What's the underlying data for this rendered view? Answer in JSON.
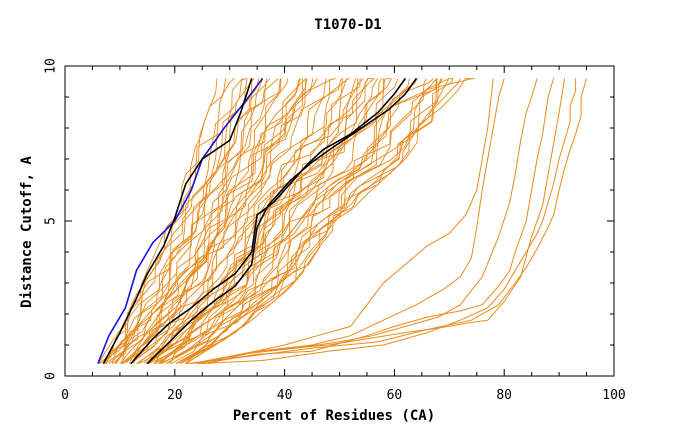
{
  "chart_data": {
    "type": "line",
    "title": "T1070-D1",
    "xlabel": "Percent of Residues (CA)",
    "ylabel": "Distance Cutoff, A",
    "xlim": [
      0,
      100
    ],
    "ylim": [
      0,
      10
    ],
    "x_ticks": [
      "0",
      "20",
      "40",
      "60",
      "80",
      "100"
    ],
    "y_ticks": [
      "0",
      "5",
      "10"
    ],
    "grid": false,
    "colors": {
      "models": "#e98a1c",
      "highlight_black": "#000000",
      "highlight_blue": "#1a10e0",
      "axis": "#000000"
    },
    "bundle": {
      "count": 60,
      "left_edge": [
        [
          6,
          0.4
        ],
        [
          10,
          1.5
        ],
        [
          14,
          3
        ],
        [
          19,
          5
        ],
        [
          23,
          7
        ],
        [
          27,
          9
        ],
        [
          29,
          9.6
        ]
      ],
      "right_edge": [
        [
          22,
          0.4
        ],
        [
          32,
          1.5
        ],
        [
          42,
          3
        ],
        [
          50,
          5
        ],
        [
          62,
          7
        ],
        [
          70,
          9
        ],
        [
          75,
          9.6
        ]
      ]
    },
    "series": [
      {
        "color": "#1a10e0",
        "points": [
          [
            6,
            0.4
          ],
          [
            8,
            1.3
          ],
          [
            11,
            2.2
          ],
          [
            13,
            3.4
          ],
          [
            16,
            4.3
          ],
          [
            20,
            5.0
          ],
          [
            23,
            6.0
          ],
          [
            25,
            7.0
          ],
          [
            29,
            8.0
          ],
          [
            33,
            8.9
          ],
          [
            36,
            9.6
          ]
        ]
      },
      {
        "color": "#000000",
        "points": [
          [
            7,
            0.4
          ],
          [
            10,
            1.4
          ],
          [
            13,
            2.5
          ],
          [
            15,
            3.3
          ],
          [
            18,
            4.2
          ],
          [
            20,
            5.1
          ],
          [
            22,
            6.2
          ],
          [
            25,
            7.0
          ],
          [
            30,
            7.6
          ],
          [
            32,
            8.5
          ],
          [
            34,
            9.6
          ]
        ]
      },
      {
        "color": "#000000",
        "points": [
          [
            12,
            0.4
          ],
          [
            16,
            1.2
          ],
          [
            19,
            1.7
          ],
          [
            23,
            2.2
          ],
          [
            27,
            2.8
          ],
          [
            31,
            3.3
          ],
          [
            34,
            4.0
          ],
          [
            35,
            5.2
          ],
          [
            38,
            5.6
          ],
          [
            41,
            6.2
          ],
          [
            44,
            6.8
          ],
          [
            47,
            7.3
          ],
          [
            52,
            7.8
          ],
          [
            57,
            8.5
          ],
          [
            60,
            9.1
          ],
          [
            62,
            9.6
          ]
        ]
      },
      {
        "color": "#000000",
        "points": [
          [
            15,
            0.4
          ],
          [
            19,
            1.1
          ],
          [
            23,
            1.8
          ],
          [
            27,
            2.4
          ],
          [
            31,
            2.9
          ],
          [
            34,
            3.6
          ],
          [
            35,
            4.8
          ],
          [
            37,
            5.5
          ],
          [
            41,
            6.3
          ],
          [
            45,
            6.9
          ],
          [
            49,
            7.4
          ],
          [
            54,
            8.0
          ],
          [
            59,
            8.6
          ],
          [
            62,
            9.1
          ],
          [
            64,
            9.6
          ]
        ]
      },
      {
        "color": "#e98a1c",
        "points": [
          [
            24,
            0.4
          ],
          [
            35,
            0.8
          ],
          [
            48,
            1.0
          ],
          [
            55,
            1.2
          ],
          [
            62,
            1.4
          ],
          [
            66,
            1.5
          ],
          [
            70,
            1.6
          ],
          [
            73,
            1.7
          ],
          [
            77,
            1.8
          ],
          [
            80,
            2.4
          ],
          [
            83,
            3.2
          ],
          [
            85,
            4.5
          ],
          [
            87,
            5.5
          ],
          [
            88,
            6.5
          ],
          [
            89,
            7.5
          ],
          [
            90,
            8.5
          ],
          [
            91,
            9.6
          ]
        ]
      },
      {
        "color": "#e98a1c",
        "points": [
          [
            25,
            0.4
          ],
          [
            35,
            0.7
          ],
          [
            45,
            0.8
          ],
          [
            55,
            1.3
          ],
          [
            60,
            1.6
          ],
          [
            66,
            1.9
          ],
          [
            72,
            2.1
          ],
          [
            76,
            2.3
          ],
          [
            79,
            2.9
          ],
          [
            81,
            3.4
          ],
          [
            82,
            4.0
          ],
          [
            83,
            4.5
          ],
          [
            84,
            5.0
          ],
          [
            85,
            6.0
          ],
          [
            86,
            7.0
          ],
          [
            87,
            7.8
          ],
          [
            88,
            9.0
          ],
          [
            89,
            9.6
          ]
        ]
      },
      {
        "color": "#e98a1c",
        "points": [
          [
            23,
            0.4
          ],
          [
            32,
            0.7
          ],
          [
            42,
            0.9
          ],
          [
            50,
            1.1
          ],
          [
            56,
            1.3
          ],
          [
            62,
            1.6
          ],
          [
            68,
            1.9
          ],
          [
            72,
            2.3
          ],
          [
            76,
            3.2
          ],
          [
            79,
            4.5
          ],
          [
            81,
            5.6
          ],
          [
            82,
            6.5
          ],
          [
            83,
            7.6
          ],
          [
            84,
            8.5
          ],
          [
            85,
            9.0
          ],
          [
            86,
            9.6
          ]
        ]
      },
      {
        "color": "#e98a1c",
        "points": [
          [
            26,
            0.4
          ],
          [
            35,
            0.8
          ],
          [
            45,
            1.0
          ],
          [
            52,
            1.3
          ],
          [
            58,
            1.8
          ],
          [
            64,
            2.3
          ],
          [
            69,
            2.8
          ],
          [
            72,
            3.2
          ],
          [
            74,
            3.8
          ],
          [
            75,
            4.8
          ],
          [
            76,
            6.0
          ],
          [
            77,
            7.0
          ],
          [
            78,
            8.0
          ],
          [
            79,
            9.0
          ],
          [
            80,
            9.6
          ]
        ]
      },
      {
        "color": "#e98a1c",
        "points": [
          [
            24,
            0.4
          ],
          [
            32,
            0.7
          ],
          [
            40,
            1.0
          ],
          [
            46,
            1.3
          ],
          [
            52,
            1.6
          ],
          [
            55,
            2.3
          ],
          [
            58,
            3.0
          ],
          [
            62,
            3.6
          ],
          [
            66,
            4.2
          ],
          [
            70,
            4.6
          ],
          [
            73,
            5.2
          ],
          [
            75,
            6.0
          ],
          [
            76,
            7.0
          ],
          [
            77,
            8.0
          ],
          [
            78,
            9.6
          ]
        ]
      },
      {
        "color": "#e98a1c",
        "points": [
          [
            93,
            9.6
          ],
          [
            93,
            9.2
          ],
          [
            92,
            8.7
          ],
          [
            92,
            8.2
          ],
          [
            91,
            7.6
          ],
          [
            90,
            7.0
          ],
          [
            89,
            6.2
          ],
          [
            88,
            5.6
          ],
          [
            87,
            5.0
          ],
          [
            86,
            4.6
          ],
          [
            84,
            4.0
          ],
          [
            82,
            3.4
          ],
          [
            80,
            2.8
          ],
          [
            77,
            2.2
          ],
          [
            72,
            1.8
          ],
          [
            66,
            1.4
          ],
          [
            58,
            1.0
          ],
          [
            48,
            0.8
          ],
          [
            36,
            0.5
          ],
          [
            24,
            0.4
          ]
        ]
      },
      {
        "color": "#e98a1c",
        "points": [
          [
            95,
            9.6
          ],
          [
            94,
            9.0
          ],
          [
            94,
            8.4
          ],
          [
            93,
            7.8
          ],
          [
            92,
            7.3
          ],
          [
            91,
            6.7
          ],
          [
            90,
            6.0
          ],
          [
            89,
            5.2
          ],
          [
            88,
            4.8
          ],
          [
            86,
            4.1
          ],
          [
            84,
            3.5
          ],
          [
            82,
            3.0
          ],
          [
            79,
            2.3
          ],
          [
            74,
            1.8
          ],
          [
            66,
            1.5
          ],
          [
            57,
            1.1
          ],
          [
            45,
            0.9
          ],
          [
            32,
            0.6
          ],
          [
            22,
            0.4
          ]
        ]
      }
    ]
  }
}
